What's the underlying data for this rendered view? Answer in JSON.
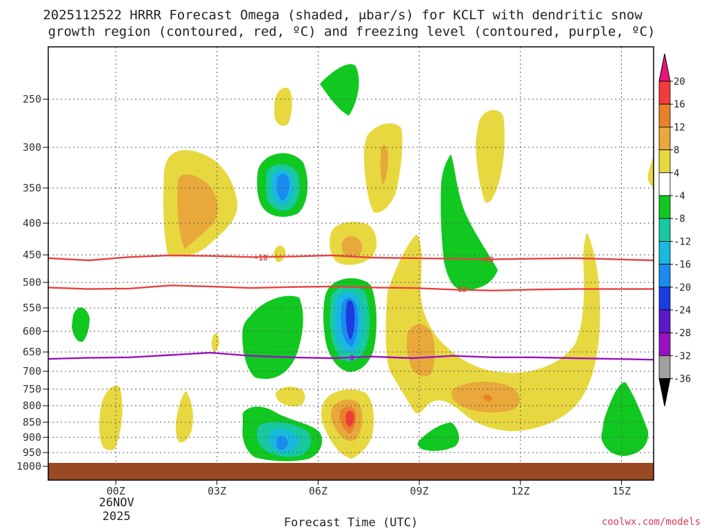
{
  "chart_data": {
    "type": "contour-filled time-height cross section",
    "title_line1": "2025112522 HRRR Forecast Omega (shaded, μbar/s) for KCLT with dendritic snow",
    "title_line2": "growth region (contoured, red, ºC) and freezing level (contoured, purple, ºC)",
    "xlabel": "Forecast Time (UTC)",
    "x_ticks": [
      "00Z",
      "03Z",
      "06Z",
      "09Z",
      "12Z",
      "15Z"
    ],
    "x_tick_hours": [
      0,
      3,
      6,
      9,
      12,
      15
    ],
    "x_date_label_line1": "26NOV",
    "x_date_label_line2": "2025",
    "xlim_hours": [
      -2,
      16
    ],
    "y_ticks": [
      250,
      300,
      350,
      400,
      450,
      500,
      550,
      600,
      650,
      700,
      750,
      800,
      850,
      900,
      950,
      1000
    ],
    "y_unit": "hPa",
    "ylim_hPa": [
      200,
      1000
    ],
    "ground_level_hPa": 985,
    "credit": "coolwx.com/models",
    "colorbar": {
      "labels": [
        "20",
        "16",
        "12",
        "8",
        "4",
        "-4",
        "-8",
        "-12",
        "-16",
        "-20",
        "-24",
        "-28",
        "-32",
        "-36"
      ],
      "colors": [
        "#e8157a",
        "#f03c3c",
        "#e8822a",
        "#e8a83a",
        "#e8d840",
        "#ffffff",
        "#10c820",
        "#18c8a0",
        "#18b8e0",
        "#1a8cf0",
        "#1a3ce0",
        "#5a18c8",
        "#9a10c0",
        "#a0a0a0",
        "#000000"
      ]
    },
    "omega_colors": {
      "plus_4_8": "#e8d840",
      "plus_8_12": "#e8a83a",
      "plus_12_16": "#e8822a",
      "plus_16_20": "#f03c3c",
      "minus_4_8": "#10c820",
      "minus_8_12": "#18c8a0",
      "minus_12_16": "#18b8e0",
      "minus_16_20": "#1a8cf0",
      "minus_20_24": "#1a3ce0"
    },
    "dgz_contours": [
      {
        "label": "-18",
        "color": "#e84040",
        "levels_hPa": [
          456,
          460,
          454,
          451,
          452,
          454,
          453,
          451,
          455,
          456,
          457,
          458,
          457,
          456,
          458,
          460
        ]
      },
      {
        "label": "-12",
        "color": "#e84040",
        "levels_hPa": [
          510,
          513,
          512,
          506,
          508,
          511,
          509,
          508,
          510,
          511,
          514,
          516,
          514,
          513,
          513,
          513
        ]
      },
      {
        "label": "0",
        "color": "#9a10c0",
        "levels_hPa": [
          668,
          665,
          664,
          658,
          652,
          660,
          664,
          666,
          662,
          666,
          660,
          664,
          664,
          666,
          668,
          670
        ]
      },
      {
        "label_hours_comment": "label positions in forecast hours"
      }
    ],
    "contour_label_hours": {
      "minus18": [
        4.3,
        11.0
      ],
      "minus12": [
        10.2
      ],
      "zero": [
        7.0
      ]
    },
    "omega_features": [
      {
        "hour": 2.0,
        "p_hPa": 360,
        "value": "+8 to +12",
        "note": "upper rising motion max"
      },
      {
        "hour": 5.0,
        "p_hPa": 345,
        "value": "-16 to -20"
      },
      {
        "hour": 7.0,
        "p_hPa": 570,
        "value": "-20 to -24",
        "note": "strong sinking core"
      },
      {
        "hour": 5.0,
        "p_hPa": 920,
        "value": "-12 to -16"
      },
      {
        "hour": 7.0,
        "p_hPa": 820,
        "value": "+16 to +20"
      },
      {
        "hour": 11.0,
        "p_hPa": 775,
        "value": "+8 to +12"
      },
      {
        "hour": 9.3,
        "p_hPa": 630,
        "value": "+8 to +12"
      }
    ]
  }
}
